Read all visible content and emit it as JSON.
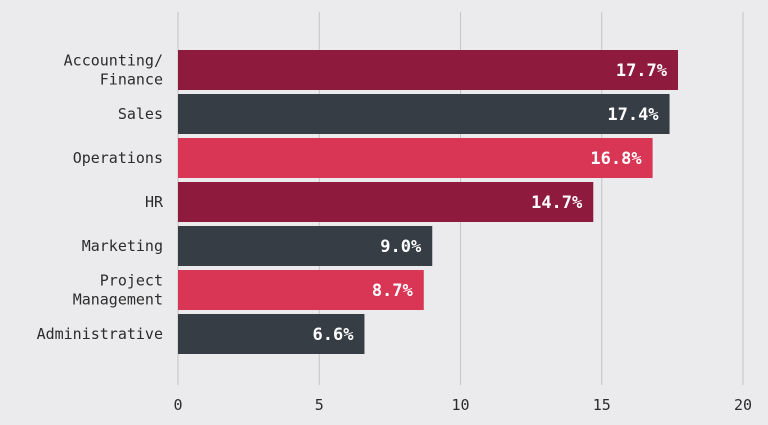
{
  "chart_data": {
    "type": "bar",
    "orientation": "horizontal",
    "categories": [
      "Accounting/\nFinance",
      "Sales",
      "Operations",
      "HR",
      "Marketing",
      "Project\nManagement",
      "Administrative"
    ],
    "values": [
      17.7,
      17.4,
      16.8,
      14.7,
      9.0,
      8.7,
      6.6
    ],
    "value_labels": [
      "17.7%",
      "17.4%",
      "16.8%",
      "14.7%",
      "9.0%",
      "8.7%",
      "6.6%"
    ],
    "bar_colors": [
      "#8e1b3e",
      "#363d45",
      "#d93554",
      "#8e1b3e",
      "#363d45",
      "#d93554",
      "#363d45"
    ],
    "x_ticks": [
      0,
      5,
      10,
      15,
      20
    ],
    "x_tick_labels": [
      "0",
      "5",
      "10",
      "15",
      "20"
    ],
    "xlim": [
      0,
      20
    ],
    "grid": "vertical",
    "title": "",
    "xlabel": "",
    "ylabel": ""
  }
}
